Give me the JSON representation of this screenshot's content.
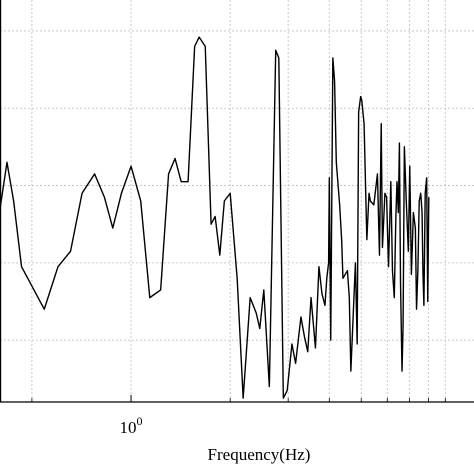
{
  "chart_data": {
    "type": "line",
    "xlabel": "Frequency(Hz)",
    "ylabel": "",
    "x_scale": "log",
    "xlim": [
      0.4,
      11
    ],
    "ylim": [
      -4.8,
      0.4
    ],
    "grid": true,
    "x_major_ticks": [
      {
        "value": 1,
        "base": "10",
        "exponent": "0"
      }
    ],
    "x_minor_gridlines": [
      0.5,
      2,
      3,
      4,
      5,
      6,
      7,
      8,
      9
    ],
    "y_gridlines": [
      -4,
      -3,
      -2,
      -1,
      0
    ],
    "series": [
      {
        "color": "#000000",
        "points": [
          [
            0.4,
            -2.3
          ],
          [
            0.42,
            -1.7
          ],
          [
            0.44,
            -2.2
          ],
          [
            0.465,
            -3.05
          ],
          [
            0.5,
            -3.3
          ],
          [
            0.545,
            -3.6
          ],
          [
            0.6,
            -3.05
          ],
          [
            0.655,
            -2.85
          ],
          [
            0.71,
            -2.1
          ],
          [
            0.775,
            -1.85
          ],
          [
            0.83,
            -2.15
          ],
          [
            0.88,
            -2.55
          ],
          [
            0.935,
            -2.1
          ],
          [
            1.0,
            -1.75
          ],
          [
            1.07,
            -2.2
          ],
          [
            1.14,
            -3.45
          ],
          [
            1.23,
            -3.35
          ],
          [
            1.3,
            -1.85
          ],
          [
            1.36,
            -1.65
          ],
          [
            1.42,
            -1.95
          ],
          [
            1.49,
            -1.95
          ],
          [
            1.56,
            -0.2
          ],
          [
            1.61,
            -0.08
          ],
          [
            1.68,
            -0.2
          ],
          [
            1.75,
            -2.5
          ],
          [
            1.8,
            -2.4
          ],
          [
            1.86,
            -2.9
          ],
          [
            1.92,
            -2.2
          ],
          [
            2.0,
            -2.1
          ],
          [
            2.1,
            -3.2
          ],
          [
            2.19,
            -4.75
          ],
          [
            2.3,
            -3.45
          ],
          [
            2.4,
            -3.65
          ],
          [
            2.46,
            -3.85
          ],
          [
            2.53,
            -3.35
          ],
          [
            2.63,
            -4.6
          ],
          [
            2.75,
            -0.25
          ],
          [
            2.81,
            -0.35
          ],
          [
            2.9,
            -4.75
          ],
          [
            2.98,
            -4.65
          ],
          [
            3.08,
            -4.05
          ],
          [
            3.16,
            -4.3
          ],
          [
            3.28,
            -3.7
          ],
          [
            3.36,
            -3.95
          ],
          [
            3.44,
            -4.15
          ],
          [
            3.52,
            -3.45
          ],
          [
            3.63,
            -4.1
          ],
          [
            3.72,
            -3.05
          ],
          [
            3.8,
            -3.4
          ],
          [
            3.88,
            -3.55
          ],
          [
            3.93,
            -3.2
          ],
          [
            3.98,
            -3.0
          ],
          [
            4.0,
            -1.9
          ],
          [
            4.04,
            -4.0
          ],
          [
            4.1,
            -0.35
          ],
          [
            4.15,
            -0.65
          ],
          [
            4.2,
            -1.7
          ],
          [
            4.3,
            -2.25
          ],
          [
            4.36,
            -2.7
          ],
          [
            4.4,
            -3.2
          ],
          [
            4.54,
            -3.1
          ],
          [
            4.6,
            -3.45
          ],
          [
            4.65,
            -4.4
          ],
          [
            4.8,
            -3.0
          ],
          [
            4.86,
            -4.05
          ],
          [
            4.91,
            -1.05
          ],
          [
            4.98,
            -0.85
          ],
          [
            5.02,
            -0.9
          ],
          [
            5.1,
            -1.2
          ],
          [
            5.2,
            -2.7
          ],
          [
            5.28,
            -2.1
          ],
          [
            5.33,
            -2.2
          ],
          [
            5.46,
            -2.25
          ],
          [
            5.6,
            -1.85
          ],
          [
            5.68,
            -2.9
          ],
          [
            5.75,
            -1.2
          ],
          [
            5.8,
            -2.8
          ],
          [
            5.9,
            -2.1
          ],
          [
            5.97,
            -2.15
          ],
          [
            6.05,
            -3.05
          ],
          [
            6.15,
            -1.95
          ],
          [
            6.22,
            -3.1
          ],
          [
            6.3,
            -3.45
          ],
          [
            6.37,
            -2.4
          ],
          [
            6.42,
            -1.95
          ],
          [
            6.48,
            -2.35
          ],
          [
            6.53,
            -1.45
          ],
          [
            6.58,
            -3.25
          ],
          [
            6.65,
            -4.4
          ],
          [
            6.7,
            -3.8
          ],
          [
            6.76,
            -1.5
          ],
          [
            6.85,
            -2.2
          ],
          [
            6.95,
            -2.85
          ],
          [
            7.02,
            -1.75
          ],
          [
            7.1,
            -3.15
          ],
          [
            7.2,
            -2.35
          ],
          [
            7.3,
            -2.55
          ],
          [
            7.36,
            -3.6
          ],
          [
            7.43,
            -3.1
          ],
          [
            7.5,
            -2.2
          ],
          [
            7.58,
            -2.1
          ],
          [
            7.65,
            -2.35
          ],
          [
            7.7,
            -3.15
          ],
          [
            7.75,
            -3.55
          ],
          [
            7.82,
            -2.1
          ],
          [
            7.9,
            -1.9
          ],
          [
            7.96,
            -3.5
          ],
          [
            8.02,
            -2.15
          ]
        ]
      }
    ],
    "x_tick_labels_shown": [
      "10^0"
    ]
  }
}
